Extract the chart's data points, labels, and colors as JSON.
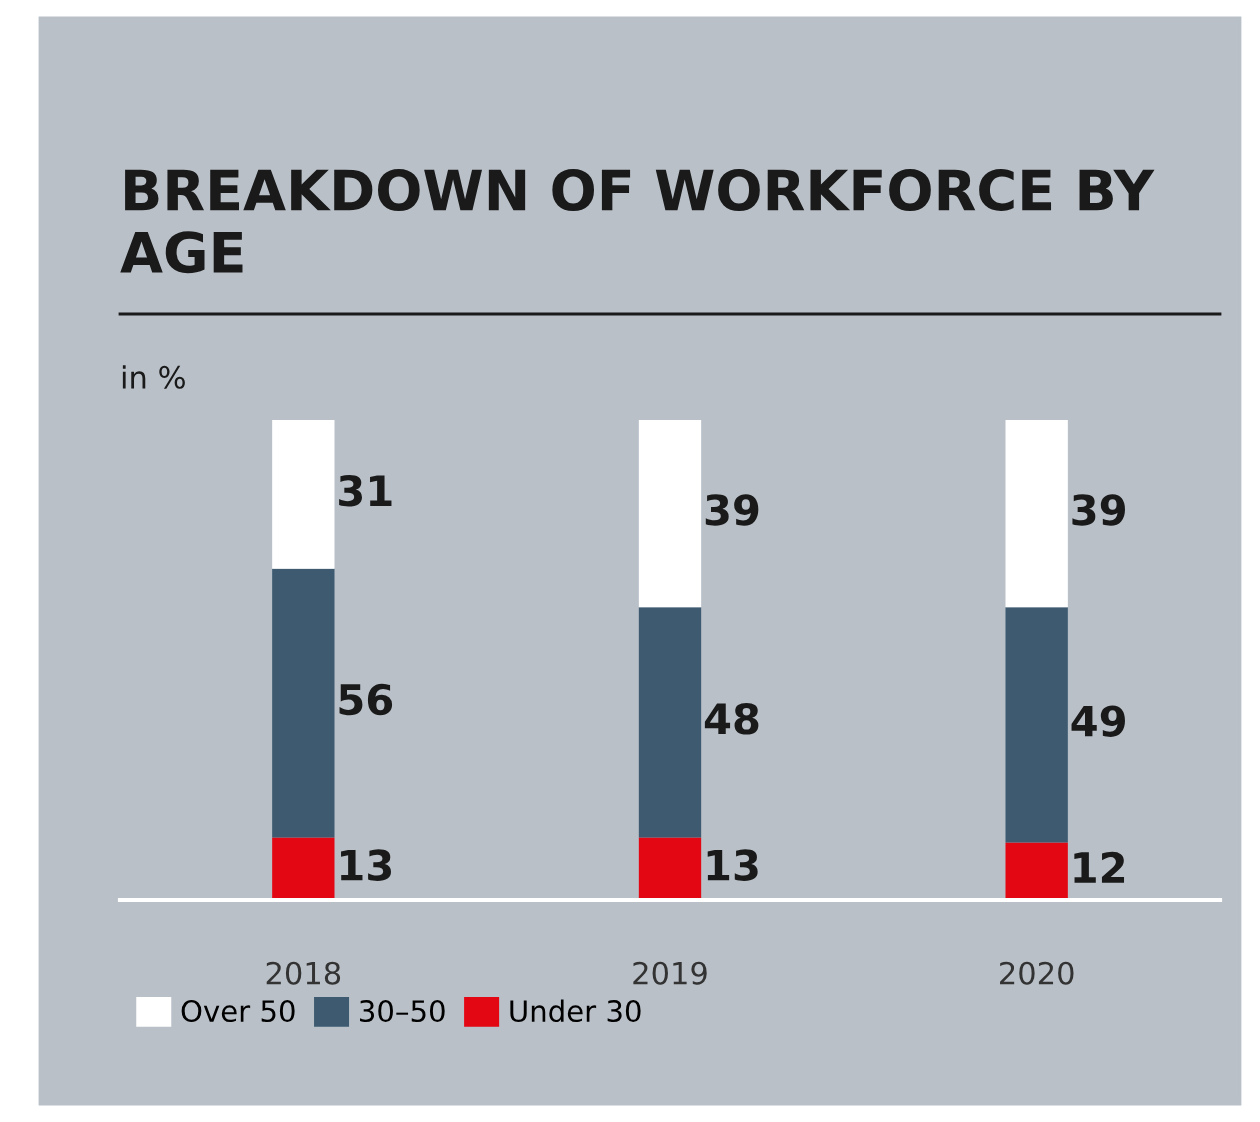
{
  "chart_data": {
    "type": "bar",
    "stacked": true,
    "title": "BREAKDOWN OF WORKFORCE BY AGE",
    "ylabel": "in %",
    "categories": [
      "2018",
      "2019",
      "2020"
    ],
    "series": [
      {
        "name": "Under 30",
        "color": "#e30613",
        "values": [
          13,
          13,
          12
        ]
      },
      {
        "name": "30–50",
        "color": "#3d5a70",
        "values": [
          56,
          48,
          49
        ]
      },
      {
        "name": "Over 50",
        "color": "#ffffff",
        "values": [
          31,
          39,
          39
        ]
      }
    ],
    "data_labels": true,
    "legend": "bottom left",
    "grid": false
  }
}
